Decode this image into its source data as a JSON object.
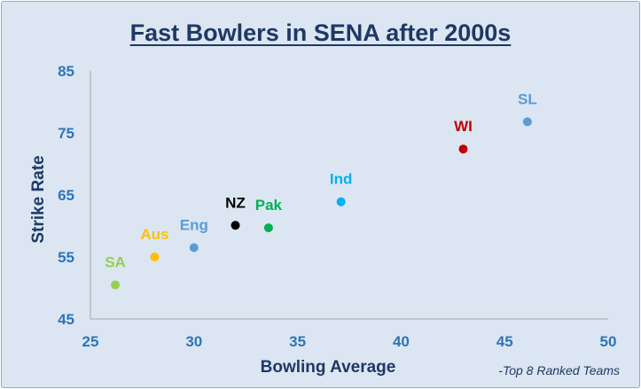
{
  "chart_data": {
    "type": "scatter",
    "title": "Fast Bowlers in SENA after 2000s",
    "xlabel": "Bowling Average",
    "ylabel": "Strike Rate",
    "note": "-Top 8 Ranked Teams",
    "xlim": [
      25,
      50
    ],
    "ylim": [
      45,
      85
    ],
    "xticks": [
      "25",
      "30",
      "35",
      "40",
      "45",
      "50"
    ],
    "yticks": [
      "45",
      "55",
      "65",
      "75",
      "85"
    ],
    "grid": false,
    "points": [
      {
        "label": "SA",
        "x": 26.2,
        "y": 50.5,
        "color": "#92d050"
      },
      {
        "label": "Aus",
        "x": 28.1,
        "y": 55.0,
        "color": "#ffc000"
      },
      {
        "label": "Eng",
        "x": 30.0,
        "y": 56.5,
        "color": "#5b9bd5"
      },
      {
        "label": "NZ",
        "x": 32.0,
        "y": 60.1,
        "color": "#000000"
      },
      {
        "label": "Pak",
        "x": 33.6,
        "y": 59.7,
        "color": "#00b050"
      },
      {
        "label": "Ind",
        "x": 37.1,
        "y": 63.9,
        "color": "#00b0f0"
      },
      {
        "label": "WI",
        "x": 43.0,
        "y": 72.4,
        "color": "#c00000"
      },
      {
        "label": "SL",
        "x": 46.1,
        "y": 76.8,
        "color": "#5b9bd5"
      }
    ],
    "tick_color": "#2e75b6",
    "axis_color": "#1f3864"
  }
}
